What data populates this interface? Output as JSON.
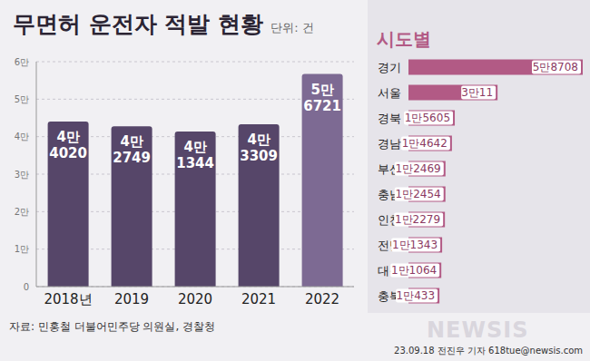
{
  "title": "무면허 운전자 적발 현황",
  "unit": "단위: 건",
  "source": "자료: 민홍철 더불어민주당 의원실, 경찰청",
  "credit": "23.09.18 전진우 기자 618tue@newsis.com",
  "watermark": "NEWSIS",
  "chart_data": [
    {
      "type": "bar",
      "categories": [
        "2018년",
        "2019",
        "2020",
        "2021",
        "2022"
      ],
      "values": [
        44020,
        42749,
        41344,
        43309,
        56721
      ],
      "value_labels": [
        "4만\n4020",
        "4만\n2749",
        "4만\n1344",
        "4만\n3309",
        "5만\n6721"
      ],
      "colors": [
        "#564669",
        "#564669",
        "#564669",
        "#564669",
        "#7d6a93"
      ],
      "ylim": [
        0,
        60000
      ],
      "yticks": [
        0,
        {
          "value": 10000,
          "label": "1만"
        },
        {
          "value": 20000,
          "label": "2만"
        },
        {
          "value": 30000,
          "label": "3만"
        },
        {
          "value": 40000,
          "label": "4만"
        },
        {
          "value": 50000,
          "label": "5만"
        },
        {
          "value": 60000,
          "label": "6만"
        }
      ],
      "grid": true,
      "data_labels": true
    },
    {
      "type": "bar",
      "title": "시도별",
      "orientation": "horizontal",
      "categories": [
        "경기",
        "서울",
        "경북",
        "경남",
        "부산",
        "충남",
        "인천",
        "전남",
        "대구",
        "충북"
      ],
      "values": [
        58708,
        30011,
        15605,
        14642,
        12469,
        12454,
        12279,
        11343,
        11064,
        10433
      ],
      "value_labels": [
        "5만8708",
        "3만11",
        "1만5605",
        "1만4642",
        "1만2469",
        "1만2454",
        "1만2279",
        "1만1343",
        "1만1064",
        "1만433"
      ],
      "color": "#b25a85",
      "xlim": [
        0,
        58708
      ],
      "tick_labels": "y",
      "data_labels": true
    }
  ]
}
